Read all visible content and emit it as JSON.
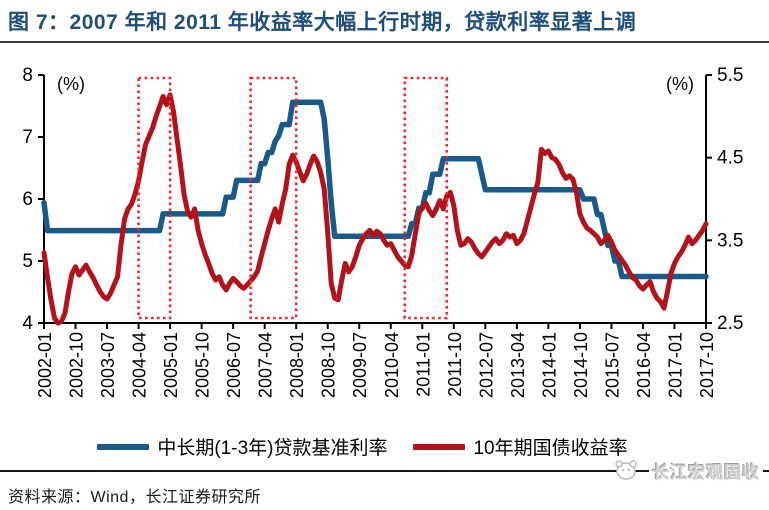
{
  "title": "图 7：2007 年和 2011 年收益率大幅上行时期，贷款利率显著上调",
  "source_note": "资料来源：Wind，长江证券研究所",
  "watermark": {
    "text": "长江宏观固收",
    "logo": "panda-brand-icon"
  },
  "colors": {
    "title": "#1F4E79",
    "loan_rate_line": "#1A5A8A",
    "bond_yield_line": "#B2131B",
    "highlight_box": "#F5232B",
    "axis": "#000000"
  },
  "legend": [
    {
      "label": "中长期(1-3年)贷款基准利率",
      "color": "#1A5A8A"
    },
    {
      "label": "10年期国债收益率",
      "color": "#B2131B"
    }
  ],
  "chart_data": {
    "type": "line",
    "dual_axis": true,
    "left_axis": {
      "label": "(%)",
      "min": 4,
      "max": 8,
      "ticks": [
        8,
        7,
        6,
        5,
        4
      ]
    },
    "right_axis": {
      "label": "(%)",
      "min": 2.5,
      "max": 5.5,
      "ticks": [
        5.5,
        4.5,
        3.5,
        2.5
      ]
    },
    "grid": false,
    "x_start": "2002-01",
    "x_end": "2017-10",
    "months_total": 190,
    "x_tick_labels": [
      "2002-01",
      "2002-10",
      "2003-07",
      "2004-04",
      "2005-01",
      "2005-10",
      "2006-07",
      "2007-04",
      "2008-01",
      "2008-10",
      "2009-07",
      "2010-04",
      "2011-01",
      "2011-10",
      "2012-07",
      "2013-04",
      "2014-01",
      "2014-10",
      "2015-07",
      "2016-04",
      "2017-01",
      "2017-10"
    ],
    "highlight_boxes": [
      {
        "from": "2004-04",
        "to": "2005-01"
      },
      {
        "from": "2006-12",
        "to": "2008-01"
      },
      {
        "from": "2010-08",
        "to": "2011-08"
      }
    ],
    "highlight_color": "#F5232B",
    "series": [
      {
        "name": "中长期(1-3年)贷款基准利率",
        "axis": "left",
        "style": "step",
        "color": "#1A5A8A",
        "changes": [
          [
            "2002-01",
            5.94
          ],
          [
            "2002-02",
            5.49
          ],
          [
            "2004-11",
            5.76
          ],
          [
            "2006-05",
            6.03
          ],
          [
            "2006-08",
            6.3
          ],
          [
            "2007-03",
            6.57
          ],
          [
            "2007-05",
            6.75
          ],
          [
            "2007-07",
            6.93
          ],
          [
            "2007-08",
            7.02
          ],
          [
            "2007-09",
            7.2
          ],
          [
            "2007-12",
            7.56
          ],
          [
            "2008-09",
            7.29
          ],
          [
            "2008-10",
            6.66
          ],
          [
            "2008-11",
            5.94
          ],
          [
            "2008-12",
            5.4
          ],
          [
            "2010-10",
            5.6
          ],
          [
            "2010-12",
            5.85
          ],
          [
            "2011-02",
            6.1
          ],
          [
            "2011-04",
            6.4
          ],
          [
            "2011-07",
            6.65
          ],
          [
            "2012-06",
            6.4
          ],
          [
            "2012-07",
            6.15
          ],
          [
            "2014-11",
            6.0
          ],
          [
            "2015-03",
            5.75
          ],
          [
            "2015-05",
            5.5
          ],
          [
            "2015-06",
            5.25
          ],
          [
            "2015-08",
            5.0
          ],
          [
            "2015-10",
            4.75
          ]
        ]
      },
      {
        "name": "10年期国债收益率",
        "axis": "right",
        "style": "line",
        "color": "#B2131B",
        "start": "2002-01",
        "interval": "monthly",
        "values": [
          3.35,
          3.05,
          2.78,
          2.56,
          2.5,
          2.52,
          2.62,
          2.88,
          3.1,
          3.18,
          3.08,
          3.14,
          3.2,
          3.12,
          3.05,
          2.96,
          2.88,
          2.82,
          2.79,
          2.86,
          2.96,
          3.06,
          3.45,
          3.76,
          3.88,
          3.94,
          4.06,
          4.22,
          4.45,
          4.66,
          4.76,
          4.86,
          5.0,
          5.12,
          5.24,
          5.14,
          5.26,
          5.05,
          4.72,
          4.4,
          4.05,
          3.85,
          3.78,
          3.88,
          3.62,
          3.46,
          3.33,
          3.22,
          3.1,
          3.02,
          3.06,
          2.96,
          2.9,
          2.98,
          3.04,
          3.0,
          2.95,
          2.92,
          2.96,
          3.01,
          3.06,
          3.13,
          3.3,
          3.46,
          3.62,
          3.76,
          3.88,
          3.72,
          3.94,
          4.12,
          4.42,
          4.53,
          4.45,
          4.33,
          4.22,
          4.3,
          4.42,
          4.52,
          4.45,
          4.32,
          4.12,
          3.6,
          2.98,
          2.8,
          2.78,
          3.02,
          3.22,
          3.12,
          3.18,
          3.3,
          3.44,
          3.52,
          3.58,
          3.62,
          3.56,
          3.61,
          3.58,
          3.5,
          3.44,
          3.46,
          3.38,
          3.3,
          3.25,
          3.2,
          3.18,
          3.32,
          3.58,
          3.82,
          3.9,
          3.95,
          3.86,
          3.8,
          3.88,
          3.98,
          3.88,
          4.04,
          4.08,
          3.92,
          3.62,
          3.44,
          3.46,
          3.52,
          3.48,
          3.4,
          3.34,
          3.3,
          3.36,
          3.42,
          3.48,
          3.52,
          3.46,
          3.5,
          3.58,
          3.54,
          3.56,
          3.46,
          3.5,
          3.58,
          3.74,
          3.9,
          4.06,
          4.2,
          4.6,
          4.55,
          4.58,
          4.5,
          4.48,
          4.42,
          4.32,
          4.25,
          4.28,
          4.24,
          4.08,
          3.82,
          3.72,
          3.65,
          3.62,
          3.58,
          3.54,
          3.46,
          3.5,
          3.56,
          3.48,
          3.38,
          3.32,
          3.26,
          3.2,
          3.12,
          3.05,
          3.02,
          2.95,
          2.91,
          2.96,
          3.0,
          2.88,
          2.8,
          2.76,
          2.68,
          2.88,
          3.1,
          3.22,
          3.3,
          3.36,
          3.44,
          3.54,
          3.46,
          3.5,
          3.56,
          3.62,
          3.7
        ]
      }
    ]
  }
}
